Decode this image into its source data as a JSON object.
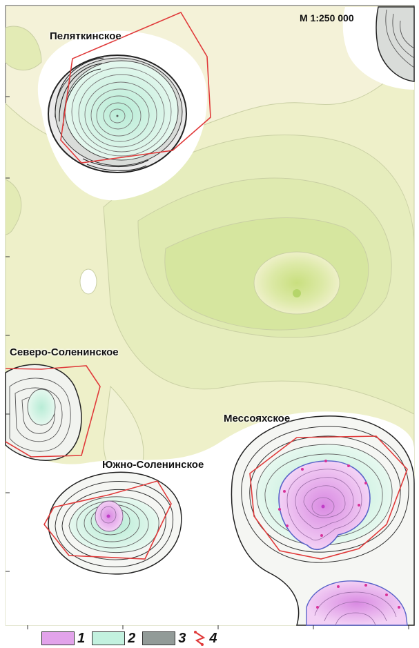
{
  "map": {
    "scale_label": "М 1:250 000",
    "fields": [
      {
        "id": "pelyatkinskoe",
        "name": "Пеляткинское"
      },
      {
        "id": "severo-soleninskoe",
        "name": "Северо-Соленинское"
      },
      {
        "id": "messoyakhskoe",
        "name": "Мессояхское"
      },
      {
        "id": "yuzhno-soleninskoe",
        "name": "Южно-Соленинское"
      }
    ],
    "colors": {
      "background": "#ffffff",
      "contour_green_light": "#f3f1d2",
      "contour_green_mid": "#e4ecb8",
      "contour_green_dark": "#cfe08a",
      "zone_1_magenta": "#e7a6ec",
      "zone_2_cyan": "#c8f1e0",
      "zone_3_gray": "#8d9a96",
      "boundary_red": "#e03a3a"
    }
  },
  "legend": {
    "items": [
      {
        "number": "1",
        "color": "#e2a3ea",
        "icon": "magenta-fill-swatch"
      },
      {
        "number": "2",
        "color": "#c3f1df",
        "icon": "cyan-fill-swatch"
      },
      {
        "number": "3",
        "color": "#929b98",
        "icon": "gray-fill-swatch"
      },
      {
        "number": "4",
        "color": "#e03a3a",
        "icon": "red-boundary-line"
      }
    ]
  }
}
